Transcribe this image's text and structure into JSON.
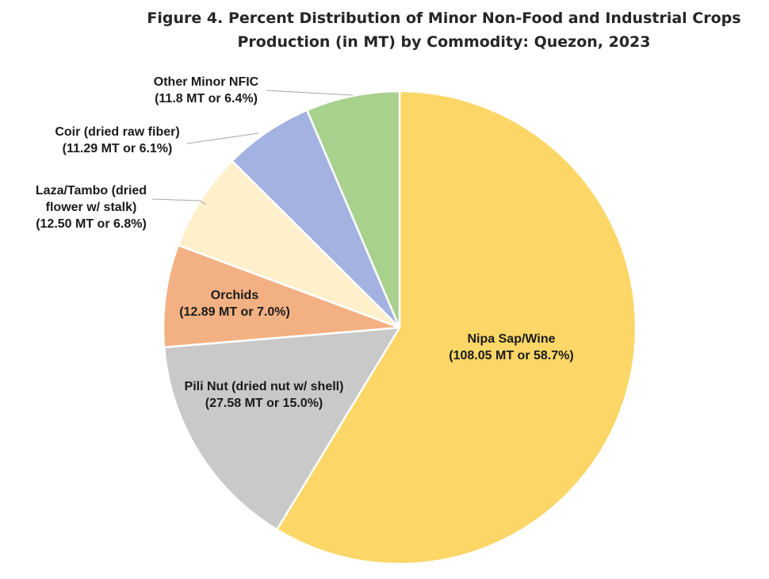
{
  "chart_data": {
    "type": "pie",
    "title_lines": [
      "Figure 4. Percent Distribution of Minor Non-Food and Industrial Crops",
      "Production (in MT) by Commodity: Quezon, 2023"
    ],
    "slices": [
      {
        "name": "Nipa Sap/Wine",
        "value": 108.05,
        "percent": 58.7,
        "color": "#FCD667",
        "label_lines": [
          "Nipa Sap/Wine",
          "(108.05 MT or 58.7%)"
        ]
      },
      {
        "name": "Pili Nut (dried nut w/ shell)",
        "value": 27.58,
        "percent": 15.0,
        "color": "#C9C9C9",
        "label_lines": [
          "Pili Nut (dried nut w/ shell)",
          "(27.58 MT or 15.0%)"
        ]
      },
      {
        "name": "Orchids",
        "value": 12.89,
        "percent": 7.0,
        "color": "#F3B183",
        "label_lines": [
          "Orchids",
          "(12.89 MT or 7.0%)"
        ]
      },
      {
        "name": "Laza/Tambo (dried flower w/ stalk)",
        "value": 12.5,
        "percent": 6.8,
        "color": "#FFF0CC",
        "label_lines": [
          "Laza/Tambo (dried",
          "flower w/ stalk)",
          "(12.50 MT or 6.8%)"
        ]
      },
      {
        "name": "Coir (dried raw fiber)",
        "value": 11.29,
        "percent": 6.1,
        "color": "#A3B2E0",
        "label_lines": [
          "Coir (dried raw fiber)",
          "(11.29 MT or 6.1%)"
        ]
      },
      {
        "name": "Other Minor NFIC",
        "value": 11.8,
        "percent": 6.4,
        "color": "#A9D18E",
        "label_lines": [
          "Other Minor NFIC",
          "(11.8 MT or 6.4%)"
        ]
      }
    ],
    "start_angle": "12 o'clock",
    "direction": "clockwise",
    "legend": "none"
  }
}
